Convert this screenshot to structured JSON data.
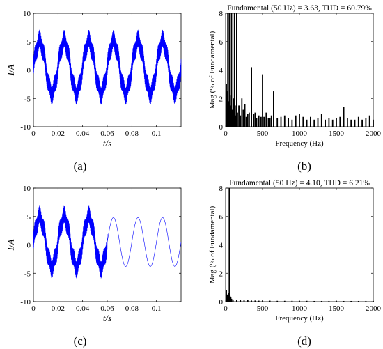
{
  "captions": [
    "(a)",
    "(b)",
    "(c)",
    "(d)"
  ],
  "chart_data": [
    {
      "id": "a",
      "type": "line",
      "title": "",
      "xlabel": "t/s",
      "ylabel": "I/A",
      "xlim": [
        0,
        0.12
      ],
      "ylim": [
        -10,
        10
      ],
      "xticks": [
        0,
        0.02,
        0.04,
        0.06,
        0.08,
        0.1
      ],
      "xticklabels": [
        "0",
        "0.02",
        "0.04",
        "0.06",
        "0.08",
        "0.1"
      ],
      "yticks": [
        -10,
        -5,
        0,
        5,
        10
      ],
      "yticklabels": [
        "-10",
        "-5",
        "0",
        "5",
        "10"
      ],
      "series": [
        {
          "color": "#0000ff",
          "fundamental_hz": 50,
          "peak_amplitude_A": 4.5,
          "ripple_band_A": 3.0,
          "ripple_until_s": 0.12,
          "x": [
            0.0,
            0.005,
            0.01,
            0.015,
            0.02,
            0.025,
            0.03,
            0.035,
            0.04,
            0.045,
            0.05,
            0.055,
            0.06,
            0.065,
            0.07,
            0.075,
            0.08,
            0.085,
            0.09,
            0.095,
            0.1,
            0.105,
            0.11,
            0.115
          ],
          "y": [
            0.5,
            5.0,
            0.5,
            -4.5,
            0.5,
            5.0,
            0.5,
            -4.5,
            0.5,
            5.0,
            0.5,
            -4.5,
            0.5,
            4.5,
            0.5,
            -4.0,
            0.5,
            4.5,
            0.5,
            -4.0,
            0.5,
            4.5,
            0.5,
            -4.0
          ]
        }
      ]
    },
    {
      "id": "b",
      "type": "bar",
      "title": "Fundamental (50 Hz) = 3.63, THD = 60.79%",
      "xlabel": "Frequency (Hz)",
      "ylabel": "Mag (% of Fundamental)",
      "xlim": [
        0,
        2000
      ],
      "ylim": [
        0,
        8
      ],
      "xticks": [
        0,
        500,
        1000,
        1500,
        2000
      ],
      "xticklabels": [
        "0",
        "500",
        "1000",
        "1500",
        "2000"
      ],
      "yticks": [
        0,
        2,
        4,
        6,
        8
      ],
      "yticklabels": [
        "0",
        "2",
        "4",
        "6",
        "8"
      ],
      "color": "#000000",
      "x": [
        10,
        20,
        30,
        40,
        50,
        60,
        70,
        80,
        90,
        100,
        110,
        120,
        130,
        140,
        150,
        160,
        180,
        200,
        220,
        240,
        260,
        280,
        300,
        320,
        350,
        380,
        400,
        420,
        450,
        480,
        500,
        520,
        550,
        580,
        600,
        620,
        650,
        700,
        750,
        800,
        850,
        900,
        950,
        1000,
        1050,
        1100,
        1150,
        1200,
        1250,
        1300,
        1350,
        1400,
        1450,
        1500,
        1550,
        1600,
        1650,
        1700,
        1750,
        1800,
        1850,
        1900,
        1950,
        2000
      ],
      "y": [
        3.0,
        2.5,
        8.0,
        1.8,
        8.0,
        2.2,
        1.5,
        8.0,
        1.2,
        1.0,
        2.0,
        8.0,
        1.5,
        0.8,
        8.0,
        1.0,
        1.5,
        0.8,
        2.0,
        1.2,
        1.6,
        0.7,
        0.9,
        1.0,
        4.2,
        0.9,
        1.0,
        0.6,
        0.8,
        0.7,
        3.7,
        0.7,
        1.0,
        0.6,
        0.6,
        0.8,
        2.5,
        0.6,
        0.7,
        0.8,
        0.6,
        0.5,
        0.8,
        0.9,
        0.7,
        0.5,
        0.7,
        0.5,
        0.6,
        0.9,
        0.5,
        0.6,
        0.5,
        0.6,
        0.7,
        1.4,
        0.6,
        0.5,
        0.5,
        0.7,
        0.5,
        0.6,
        0.8,
        0.5
      ]
    },
    {
      "id": "c",
      "type": "line",
      "title": "",
      "xlabel": "t/s",
      "ylabel": "I/A",
      "xlim": [
        0,
        0.12
      ],
      "ylim": [
        -10,
        10
      ],
      "xticks": [
        0,
        0.02,
        0.04,
        0.06,
        0.08,
        0.1
      ],
      "xticklabels": [
        "0",
        "0.02",
        "0.04",
        "0.06",
        "0.08",
        "0.1"
      ],
      "yticks": [
        -10,
        -5,
        0,
        5,
        10
      ],
      "yticklabels": [
        "-10",
        "-5",
        "0",
        "5",
        "10"
      ],
      "series": [
        {
          "color": "#0000ff",
          "fundamental_hz": 50,
          "peak_amplitude_A": 4.3,
          "ripple_band_A": 3.0,
          "ripple_until_s": 0.06,
          "x": [
            0.0,
            0.005,
            0.01,
            0.015,
            0.02,
            0.025,
            0.03,
            0.035,
            0.04,
            0.045,
            0.05,
            0.055,
            0.06,
            0.065,
            0.07,
            0.075,
            0.08,
            0.085,
            0.09,
            0.095,
            0.1,
            0.105,
            0.11,
            0.115
          ],
          "y": [
            0.5,
            5.0,
            0.5,
            -4.5,
            0.5,
            5.0,
            0.5,
            -4.5,
            0.5,
            4.5,
            0.5,
            -4.0,
            0.5,
            4.3,
            0.5,
            -3.8,
            0.5,
            4.3,
            0.5,
            -3.8,
            0.5,
            4.3,
            0.5,
            -3.8
          ]
        }
      ]
    },
    {
      "id": "d",
      "type": "bar",
      "title": "Fundamental (50 Hz) = 4.10, THD = 6.21%",
      "xlabel": "Frequency (Hz)",
      "ylabel": "Mag (% of Fundamental)",
      "xlim": [
        0,
        2000
      ],
      "ylim": [
        0,
        8
      ],
      "xticks": [
        0,
        500,
        1000,
        1500,
        2000
      ],
      "xticklabels": [
        "0",
        "500",
        "1000",
        "1500",
        "2000"
      ],
      "yticks": [
        0,
        2,
        4,
        6,
        8
      ],
      "yticklabels": [
        "0",
        "2",
        "4",
        "6",
        "8"
      ],
      "color": "#000000",
      "x": [
        10,
        20,
        30,
        40,
        50,
        60,
        70,
        80,
        100,
        150,
        200,
        250,
        300,
        350,
        400,
        450,
        500,
        600,
        700,
        800,
        900,
        1000,
        1100,
        1200,
        1300,
        1400,
        1500,
        1600,
        1700,
        1800,
        1900,
        2000
      ],
      "y": [
        0.8,
        0.5,
        0.3,
        0.6,
        8.0,
        0.4,
        0.3,
        0.2,
        0.15,
        0.12,
        0.1,
        0.1,
        0.1,
        0.08,
        0.08,
        0.07,
        0.08,
        0.07,
        0.06,
        0.06,
        0.06,
        0.05,
        0.06,
        0.05,
        0.05,
        0.05,
        0.05,
        0.05,
        0.05,
        0.05,
        0.05,
        0.05
      ]
    }
  ]
}
